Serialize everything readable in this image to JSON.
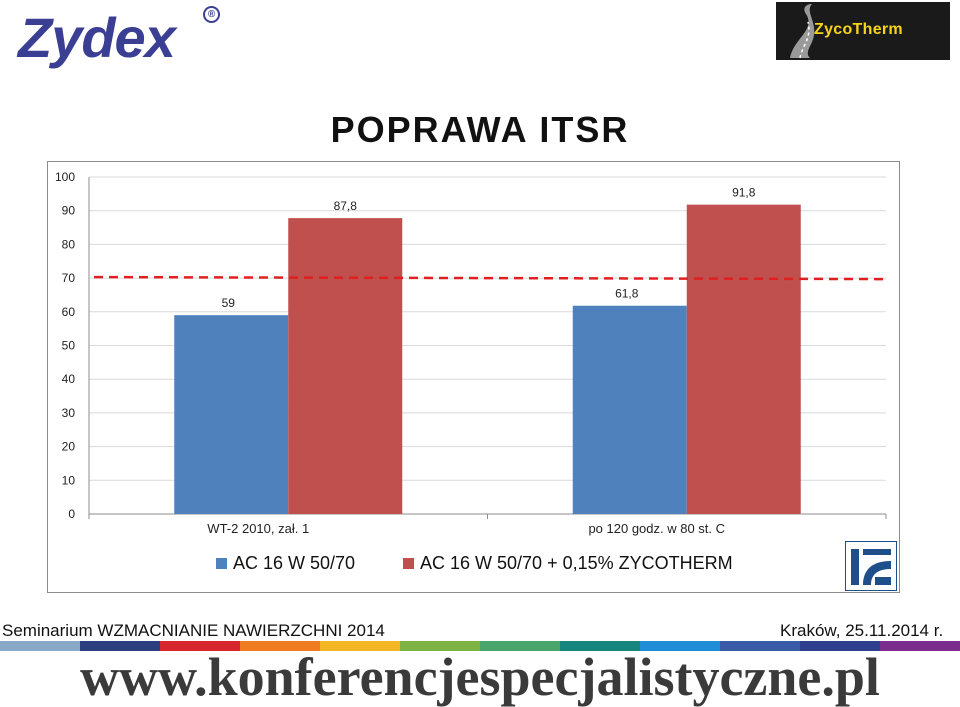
{
  "header": {
    "brand_left": "Zydex",
    "brand_left_registered": "®",
    "brand_right": "ZycoTherm"
  },
  "slide": {
    "title": "POPRAWA ITSR"
  },
  "chart_data": {
    "type": "bar",
    "title": "",
    "xlabel": "",
    "ylabel": "",
    "categories": [
      "WT-2 2010, zał. 1",
      "po 120 godz. w 80 st. C"
    ],
    "series": [
      {
        "name": "AC 16 W 50/70",
        "values": [
          59,
          61.8
        ],
        "labels": [
          "59",
          "61,8"
        ],
        "color": "#4f81bd"
      },
      {
        "name": "AC 16 W 50/70 + 0,15% ZYCOTHERM",
        "values": [
          87.8,
          91.8
        ],
        "labels": [
          "87,8",
          "91,8"
        ],
        "color": "#c0504d"
      }
    ],
    "ylim": [
      0,
      100
    ],
    "yticks": [
      0,
      10,
      20,
      30,
      40,
      50,
      60,
      70,
      80,
      90,
      100
    ],
    "grid": true,
    "legend_position": "bottom",
    "reference_line": {
      "value": 70,
      "style": "dashed",
      "color": "#e02020"
    }
  },
  "footer": {
    "seminar": "Seminarium WZMACNIANIE NAWIERZCHNI 2014",
    "date": "Kraków, 25.11.2014 r.",
    "url": "www.konferencjespecjalistyczne.pl",
    "stripe_colors": [
      "#8aa8c8",
      "#2b3e7e",
      "#d8262f",
      "#f07b20",
      "#f5b625",
      "#7cb342",
      "#4aa56a",
      "#16867f",
      "#1f8dd6",
      "#3a5ba8",
      "#2f3f8f",
      "#7a2d8c"
    ]
  }
}
